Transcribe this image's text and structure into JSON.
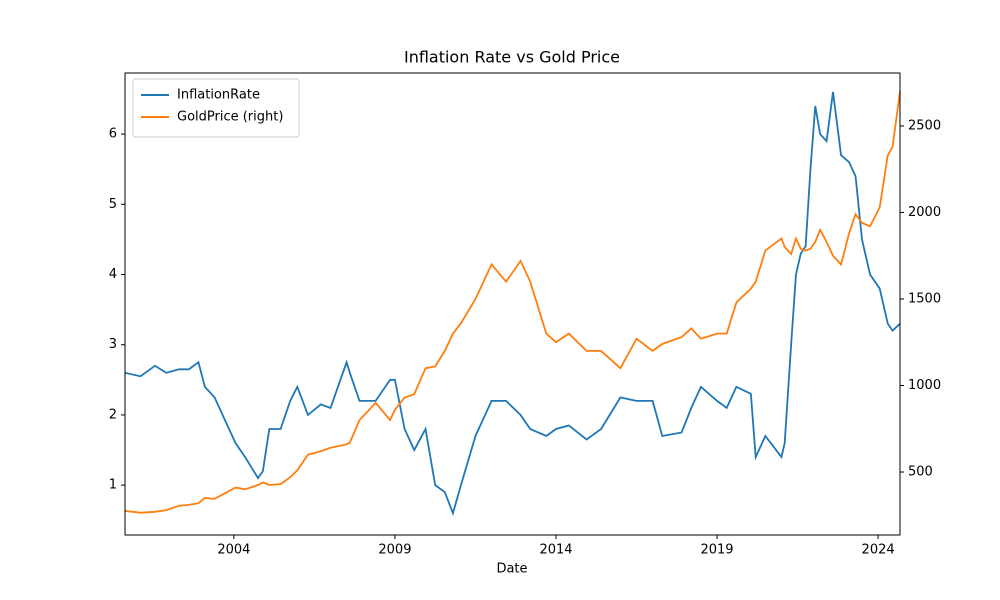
{
  "chart_data": {
    "type": "line",
    "title": "Inflation Rate vs Gold Price",
    "x_label": "Date",
    "x": [
      2000.62,
      2001.1,
      2001.55,
      2001.9,
      2002.3,
      2002.6,
      2002.9,
      2003.1,
      2003.4,
      2003.75,
      2004.05,
      2004.35,
      2004.75,
      2004.9,
      2005.1,
      2005.45,
      2005.75,
      2005.97,
      2006.3,
      2006.7,
      2007.0,
      2007.5,
      2007.6,
      2007.9,
      2008.4,
      2008.85,
      2009.0,
      2009.3,
      2009.6,
      2009.95,
      2010.25,
      2010.55,
      2010.8,
      2011.05,
      2011.5,
      2012.0,
      2012.45,
      2012.9,
      2013.2,
      2013.7,
      2014.0,
      2014.4,
      2014.95,
      2015.4,
      2016.0,
      2016.5,
      2017.0,
      2017.3,
      2017.9,
      2018.2,
      2018.5,
      2019.0,
      2019.3,
      2019.6,
      2020.05,
      2020.2,
      2020.5,
      2021.0,
      2021.1,
      2021.3,
      2021.45,
      2021.6,
      2021.75,
      2021.9,
      2022.05,
      2022.2,
      2022.4,
      2022.6,
      2022.85,
      2023.1,
      2023.3,
      2023.5,
      2023.75,
      2024.05,
      2024.3,
      2024.45,
      2024.68
    ],
    "series": [
      {
        "name": "InflationRate",
        "color": "#1f77b4",
        "values": [
          2.6,
          2.55,
          2.7,
          2.6,
          2.65,
          2.65,
          2.75,
          2.4,
          2.25,
          1.9,
          1.6,
          1.4,
          1.1,
          1.2,
          1.8,
          1.8,
          2.2,
          2.4,
          2.0,
          2.15,
          2.1,
          2.75,
          2.6,
          2.2,
          2.2,
          2.5,
          2.5,
          1.8,
          1.5,
          1.8,
          1.0,
          0.9,
          0.6,
          1.0,
          1.7,
          2.2,
          2.2,
          2.0,
          1.8,
          1.7,
          1.8,
          1.85,
          1.65,
          1.8,
          2.25,
          2.2,
          2.2,
          1.7,
          1.75,
          2.1,
          2.4,
          2.2,
          2.1,
          2.4,
          2.3,
          1.4,
          1.7,
          1.4,
          1.6,
          3.0,
          4.0,
          4.3,
          4.4,
          5.5,
          6.4,
          6.0,
          5.9,
          6.6,
          5.7,
          5.6,
          5.4,
          4.5,
          4.0,
          3.8,
          3.3,
          3.2,
          3.3
        ]
      },
      {
        "name": "GoldPrice (right)",
        "color": "#ff7f0e",
        "axis": "y2",
        "values": [
          275,
          265,
          270,
          280,
          305,
          310,
          320,
          350,
          345,
          380,
          410,
          400,
          425,
          440,
          425,
          430,
          470,
          510,
          600,
          620,
          640,
          660,
          670,
          800,
          900,
          800,
          860,
          930,
          950,
          1100,
          1110,
          1200,
          1300,
          1360,
          1500,
          1700,
          1600,
          1720,
          1600,
          1300,
          1250,
          1300,
          1200,
          1200,
          1100,
          1270,
          1200,
          1240,
          1280,
          1330,
          1270,
          1300,
          1300,
          1480,
          1560,
          1600,
          1780,
          1850,
          1800,
          1760,
          1850,
          1790,
          1780,
          1790,
          1830,
          1900,
          1830,
          1750,
          1700,
          1880,
          1990,
          1940,
          1920,
          2030,
          2330,
          2380,
          2700
        ]
      }
    ],
    "xlim": [
      2000.62,
      2024.68
    ],
    "xticks": [
      2004,
      2009,
      2014,
      2019,
      2024
    ],
    "ylim": [
      0.29,
      6.87
    ],
    "yticks": [
      1,
      2,
      3,
      4,
      5,
      6
    ],
    "y2lim": [
      136,
      2806
    ],
    "y2ticks": [
      500,
      1000,
      1500,
      2000,
      2500
    ],
    "legend": "upper left"
  }
}
